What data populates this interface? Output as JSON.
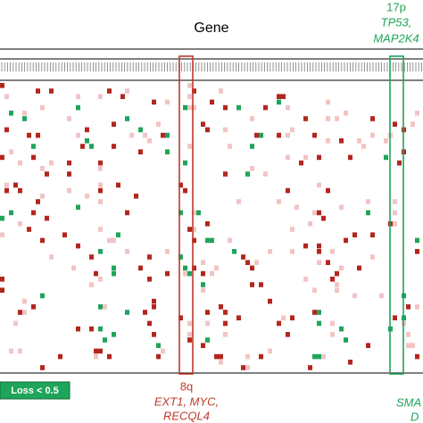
{
  "title": "Gene",
  "highlights": [
    {
      "region": "17p",
      "genes": [
        "TP53,",
        "MAP2K4"
      ]
    },
    {
      "region": "8q",
      "genes": [
        "EXT1, MYC,",
        "RECQL4"
      ]
    },
    {
      "genes": [
        "SMA",
        "D"
      ]
    }
  ],
  "legend": {
    "label": "Loss < 0.5"
  }
}
